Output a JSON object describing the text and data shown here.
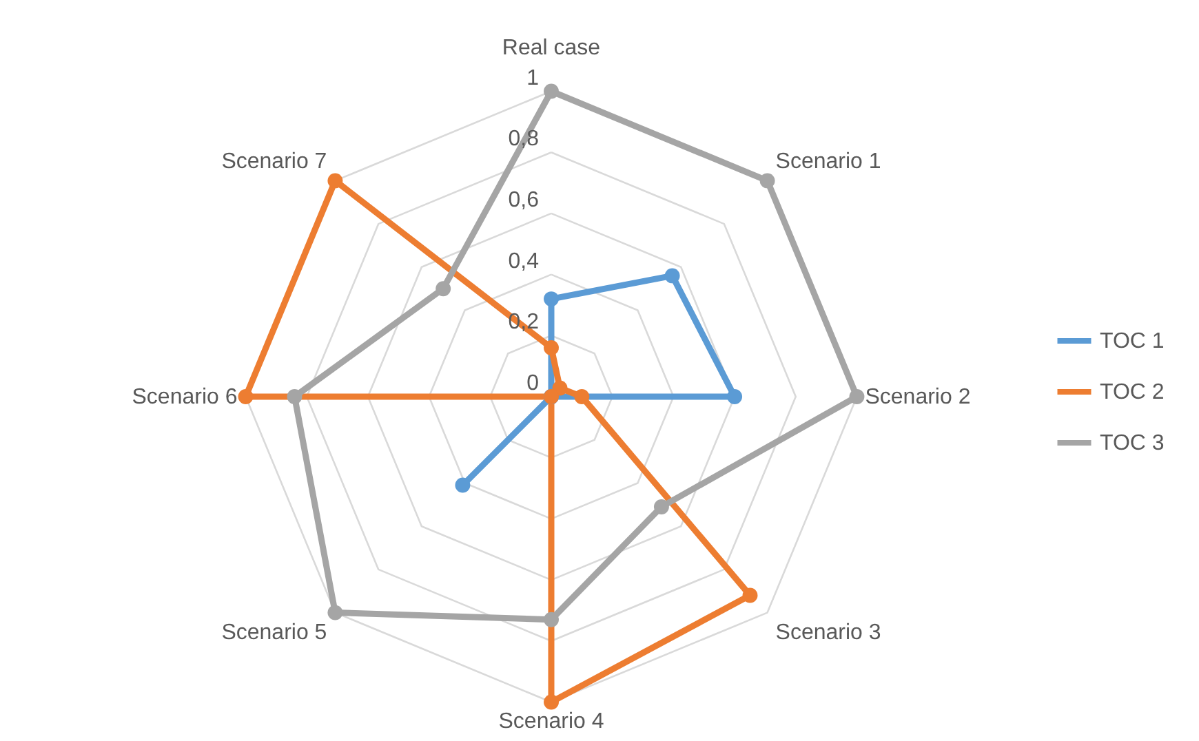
{
  "chart_data": {
    "type": "radar",
    "categories": [
      "Real case",
      "Scenario 1",
      "Scenario 2",
      "Scenario 3",
      "Scenario 4",
      "Scenario 5",
      "Scenario 6",
      "Scenario 7"
    ],
    "series": [
      {
        "name": "TOC 1",
        "color": "#5b9bd5",
        "values": [
          0.32,
          0.56,
          0.6,
          0,
          0,
          0.41,
          0,
          0
        ]
      },
      {
        "name": "TOC 2",
        "color": "#ed7d31",
        "values": [
          0.16,
          0.04,
          0.1,
          0.92,
          1,
          0,
          1,
          1
        ]
      },
      {
        "name": "TOC 3",
        "color": "#a5a5a5",
        "values": [
          1,
          1,
          1,
          0.51,
          0.73,
          1,
          0.84,
          0.5
        ]
      }
    ],
    "ylim": [
      0,
      1
    ],
    "yticks": [
      0,
      {
        "value": 0.2,
        "label": "0,2"
      },
      {
        "value": 0.4,
        "label": "0,4"
      },
      {
        "value": 0.6,
        "label": "0,6"
      },
      {
        "value": 0.8,
        "label": "0,8"
      },
      1
    ],
    "grid": true,
    "legend": "right",
    "marker": "circle",
    "line_style": "solid"
  }
}
